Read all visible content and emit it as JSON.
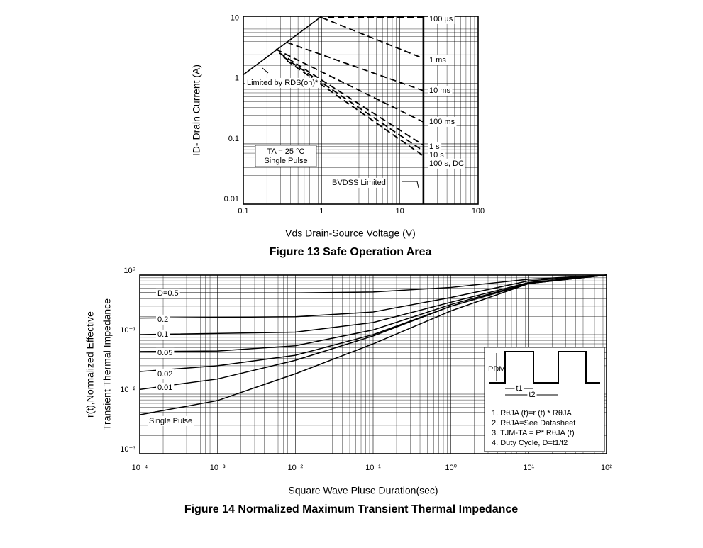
{
  "chart_data": [
    {
      "type": "line",
      "log_x": true,
      "log_y": true,
      "grid": true,
      "caption": "Figure 13 Safe Operation Area",
      "xlabel": "Vds Drain-Source Voltage (V)",
      "ylabel": "ID- Drain Current (A)",
      "xlim": [
        0.1,
        100
      ],
      "ylim": [
        0.01,
        13
      ],
      "xticks": [
        0.1,
        1,
        10,
        100
      ],
      "yticks": [
        0.01,
        0.1,
        1,
        10
      ],
      "annotations": [
        "TA = 25 °C",
        "Single Pulse"
      ],
      "series": [
        {
          "name": "Limited by RDS(on)*",
          "style": "solid",
          "color": "#000000",
          "x": [
            0.1,
            1.0
          ],
          "y": [
            1.4,
            13
          ]
        },
        {
          "name": "100 µs",
          "style": "dashed",
          "color": "#000000",
          "x": [
            1.2,
            20
          ],
          "y": [
            12.5,
            12.5
          ]
        },
        {
          "name": "1 ms",
          "style": "dashed",
          "color": "#000000",
          "x": [
            1.0,
            20
          ],
          "y": [
            12.4,
            2.6
          ]
        },
        {
          "name": "10 ms",
          "style": "dashed",
          "color": "#000000",
          "x": [
            0.36,
            20
          ],
          "y": [
            4.8,
            0.76
          ]
        },
        {
          "name": "100 ms",
          "style": "dashed",
          "color": "#000000",
          "x": [
            0.26,
            20
          ],
          "y": [
            3.7,
            0.23
          ]
        },
        {
          "name": "1 s",
          "style": "dashed",
          "color": "#000000",
          "x": [
            0.29,
            20
          ],
          "y": [
            3.2,
            0.095
          ]
        },
        {
          "name": "10 s",
          "style": "dashed",
          "color": "#000000",
          "x": [
            0.32,
            20
          ],
          "y": [
            2.8,
            0.076
          ]
        },
        {
          "name": "100 s, DC",
          "style": "dashed",
          "color": "#000000",
          "x": [
            0.36,
            20
          ],
          "y": [
            2.4,
            0.063
          ]
        },
        {
          "name": "BVDSS Limited",
          "style": "solid",
          "color": "#000000",
          "x": [
            20,
            20
          ],
          "y": [
            0.01,
            13
          ]
        }
      ]
    },
    {
      "type": "line",
      "log_x": true,
      "log_y": true,
      "grid": true,
      "caption": "Figure 14 Normalized Maximum Transient Thermal Impedance",
      "xlabel": "Square Wave Pluse Duration(sec)",
      "ylabel": [
        "r(t),Normalized Effective",
        "Transient Thermal Impedance"
      ],
      "xlim": [
        0.0001,
        100
      ],
      "ylim": [
        0.001,
        1
      ],
      "xticks": [
        {
          "value": 0.0001,
          "label": "10⁻⁴"
        },
        {
          "value": 0.001,
          "label": "10⁻³"
        },
        {
          "value": 0.01,
          "label": "10⁻²"
        },
        {
          "value": 0.1,
          "label": "10⁻¹"
        },
        {
          "value": 1,
          "label": "10⁰"
        },
        {
          "value": 10,
          "label": "10¹"
        },
        {
          "value": 100,
          "label": "10²"
        }
      ],
      "yticks": [
        {
          "value": 0.001,
          "label": "10⁻³"
        },
        {
          "value": 0.01,
          "label": "10⁻²"
        },
        {
          "value": 0.1,
          "label": "10⁻¹"
        },
        {
          "value": 1,
          "label": "10⁰"
        }
      ],
      "inset": {
        "pdm": "PDM",
        "t1": "t1",
        "t2": "t2",
        "notes": [
          "1. RθJA (t)=r (t) * RθJA",
          "2. RθJA=See Datasheet",
          "3. TJM-TA = P* RθJA (t)",
          "4. Duty Cycle, D=t1/t2"
        ]
      },
      "series": [
        {
          "name": "D=0.5",
          "style": "solid",
          "color": "#000000",
          "x": [
            0.0001,
            0.01,
            0.1,
            1,
            10,
            100
          ],
          "y": [
            0.5,
            0.5,
            0.52,
            0.62,
            0.85,
            1
          ]
        },
        {
          "name": "0.2",
          "style": "solid",
          "color": "#000000",
          "x": [
            0.0001,
            0.01,
            0.1,
            1,
            10,
            100
          ],
          "y": [
            0.19,
            0.2,
            0.24,
            0.42,
            0.8,
            1
          ]
        },
        {
          "name": "0.1",
          "style": "solid",
          "color": "#000000",
          "x": [
            0.0001,
            0.01,
            0.1,
            1,
            10,
            100
          ],
          "y": [
            0.1,
            0.11,
            0.16,
            0.35,
            0.75,
            1
          ]
        },
        {
          "name": "0.05",
          "style": "solid",
          "color": "#000000",
          "x": [
            0.0001,
            0.001,
            0.01,
            0.1,
            1,
            10,
            100
          ],
          "y": [
            0.052,
            0.053,
            0.065,
            0.12,
            0.32,
            0.73,
            1
          ]
        },
        {
          "name": "0.02",
          "style": "solid",
          "color": "#000000",
          "x": [
            0.0001,
            0.001,
            0.01,
            0.1,
            1,
            10,
            100
          ],
          "y": [
            0.024,
            0.03,
            0.045,
            0.1,
            0.3,
            0.72,
            1
          ]
        },
        {
          "name": "0.01",
          "style": "solid",
          "color": "#000000",
          "x": [
            0.0001,
            0.001,
            0.01,
            0.1,
            1,
            10,
            100
          ],
          "y": [
            0.012,
            0.018,
            0.037,
            0.095,
            0.3,
            0.72,
            1
          ]
        },
        {
          "name": "Single Pulse",
          "style": "solid",
          "color": "#000000",
          "x": [
            0.0001,
            0.001,
            0.01,
            0.1,
            1,
            10,
            100
          ],
          "y": [
            0.0045,
            0.0078,
            0.022,
            0.07,
            0.25,
            0.72,
            1
          ]
        }
      ]
    }
  ]
}
